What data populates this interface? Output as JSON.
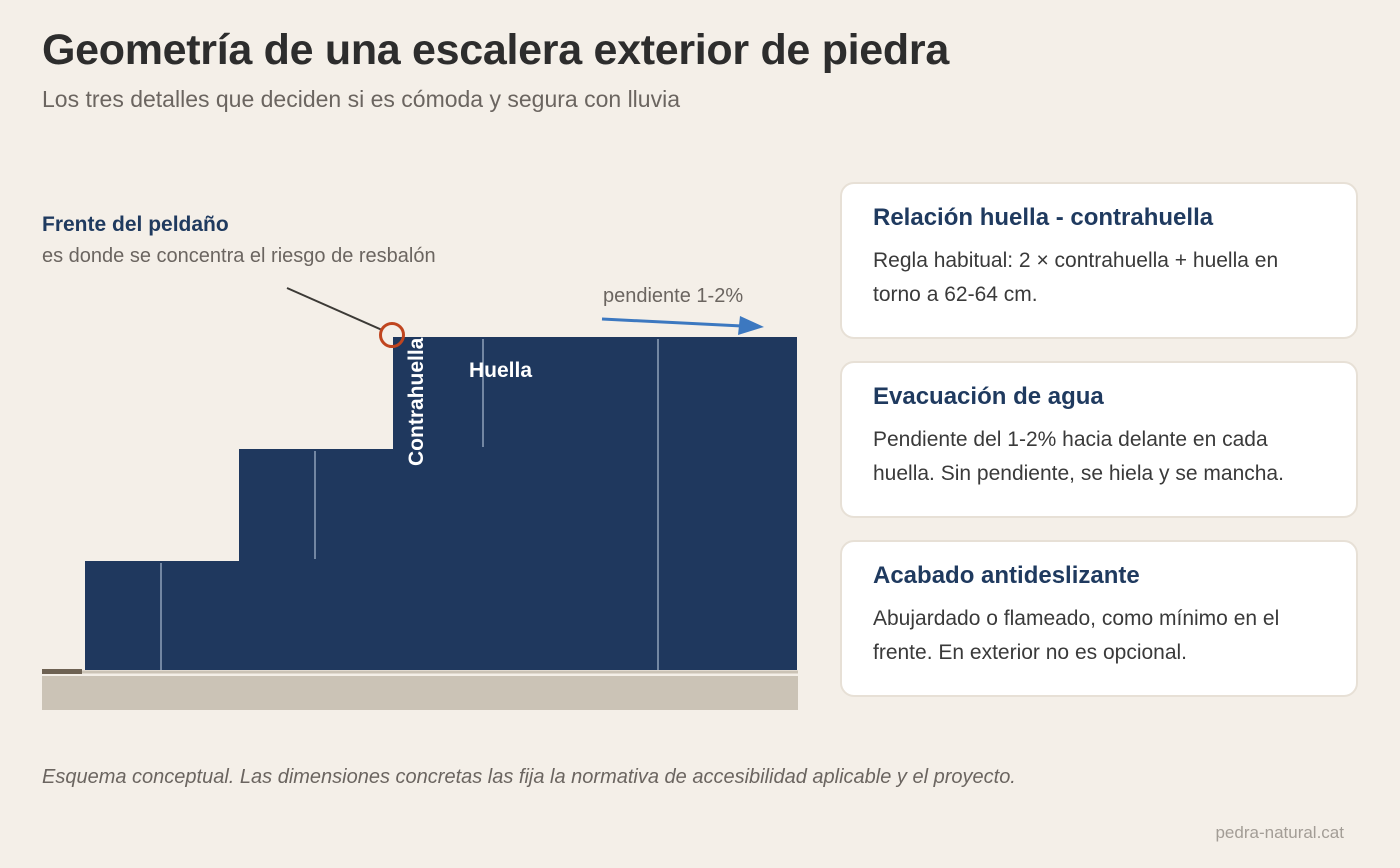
{
  "header": {
    "title": "Geometría de una escalera exterior de piedra",
    "subtitle": "Los tres detalles que deciden si es cómoda y segura con lluvia"
  },
  "diagram": {
    "callout_title": "Frente del peldaño",
    "callout_subtitle": "es donde se concentra el riesgo de resbalón",
    "slope_label": "pendiente 1-2%",
    "riser_label": "Contrahuella",
    "tread_label": "Huella",
    "colors": {
      "stone": "#1f385e",
      "ground": "#cbc3b6",
      "accent": "#c0451f",
      "arrow": "#3c78c0"
    }
  },
  "cards": [
    {
      "title": "Relación huella - contrahuella",
      "body": "Regla habitual: 2 × contrahuella + huella en torno a 62-64 cm."
    },
    {
      "title": "Evacuación de agua",
      "body": "Pendiente del 1-2% hacia delante en cada huella. Sin pendiente, se hiela y se mancha."
    },
    {
      "title": "Acabado antideslizante",
      "body": "Abujardado o flameado, como mínimo en el frente. En exterior no es opcional."
    }
  ],
  "footer": {
    "note": "Esquema conceptual. Las dimensiones concretas las fija la normativa de accesibilidad aplicable y el proyecto.",
    "credit": "pedra-natural.cat"
  }
}
